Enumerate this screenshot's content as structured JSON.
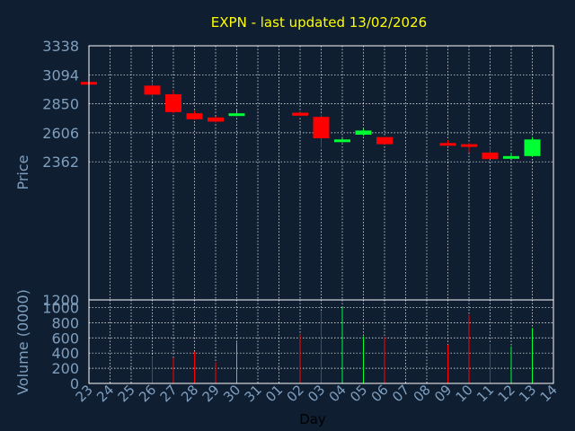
{
  "chart_data": {
    "type": "candlestick",
    "title": "EXPN - last updated 13/02/2026",
    "xlabel": "Day",
    "x_ticks": [
      "23",
      "24",
      "25",
      "26",
      "27",
      "28",
      "29",
      "30",
      "31",
      "01",
      "02",
      "03",
      "04",
      "05",
      "06",
      "07",
      "08",
      "09",
      "10",
      "11",
      "12",
      "13",
      "14"
    ],
    "price_panel": {
      "ylabel": "Price",
      "y_ticks": [
        "3338",
        "3094",
        "2850",
        "2606",
        "2362",
        "1200"
      ],
      "ylim": [
        1200,
        3338
      ],
      "grid": true,
      "candles": [
        {
          "day": "23",
          "open": 3034,
          "close": 3017,
          "high": 3034,
          "low": 3017
        },
        {
          "day": "26",
          "open": 3003,
          "close": 2927,
          "high": 3040,
          "low": 2900
        },
        {
          "day": "27",
          "open": 2930,
          "close": 2780,
          "high": 2965,
          "low": 2770
        },
        {
          "day": "28",
          "open": 2770,
          "close": 2720,
          "high": 2790,
          "low": 2715
        },
        {
          "day": "29",
          "open": 2735,
          "close": 2700,
          "high": 2745,
          "low": 2690
        },
        {
          "day": "30",
          "open": 2760,
          "close": 2770,
          "high": 2800,
          "low": 2745
        },
        {
          "day": "02",
          "open": 2775,
          "close": 2750,
          "high": 2780,
          "low": 2745
        },
        {
          "day": "03",
          "open": 2740,
          "close": 2560,
          "high": 2760,
          "low": 2480
        },
        {
          "day": "04",
          "open": 2530,
          "close": 2550,
          "high": 2560,
          "low": 2525
        },
        {
          "day": "05",
          "open": 2590,
          "close": 2625,
          "high": 2640,
          "low": 2580
        },
        {
          "day": "06",
          "open": 2570,
          "close": 2510,
          "high": 2570,
          "low": 2510
        },
        {
          "day": "09",
          "open": 2520,
          "close": 2510,
          "high": 2545,
          "low": 2500
        },
        {
          "day": "10",
          "open": 2510,
          "close": 2490,
          "high": 2520,
          "low": 2440
        },
        {
          "day": "11",
          "open": 2440,
          "close": 2385,
          "high": 2490,
          "low": 2385
        },
        {
          "day": "12",
          "open": 2405,
          "close": 2410,
          "high": 2440,
          "low": 2400
        },
        {
          "day": "13",
          "open": 2410,
          "close": 2550,
          "high": 2570,
          "low": 2405
        }
      ]
    },
    "volume_panel": {
      "ylabel": "Volume (0000)",
      "y_ticks": [
        "1000",
        "800",
        "600",
        "400",
        "200",
        "0"
      ],
      "ylim": [
        0,
        1100
      ],
      "volumes": [
        {
          "day": "23",
          "value": 0
        },
        {
          "day": "26",
          "value": 350
        },
        {
          "day": "27",
          "value": 340
        },
        {
          "day": "28",
          "value": 420
        },
        {
          "day": "29",
          "value": 280
        },
        {
          "day": "30",
          "value": 540
        },
        {
          "day": "02",
          "value": 640
        },
        {
          "day": "03",
          "value": 950
        },
        {
          "day": "04",
          "value": 1010
        },
        {
          "day": "05",
          "value": 620
        },
        {
          "day": "06",
          "value": 610
        },
        {
          "day": "09",
          "value": 510
        },
        {
          "day": "10",
          "value": 900
        },
        {
          "day": "11",
          "value": 520
        },
        {
          "day": "12",
          "value": 490
        },
        {
          "day": "13",
          "value": 730
        }
      ]
    },
    "colors": {
      "background": "#0f1e30",
      "up": "#00ff33",
      "down": "#ff0000",
      "title": "#ffff00",
      "axis_label": "#7f9fbf",
      "grid": "#ffffff",
      "frame": "#ffffff"
    }
  }
}
